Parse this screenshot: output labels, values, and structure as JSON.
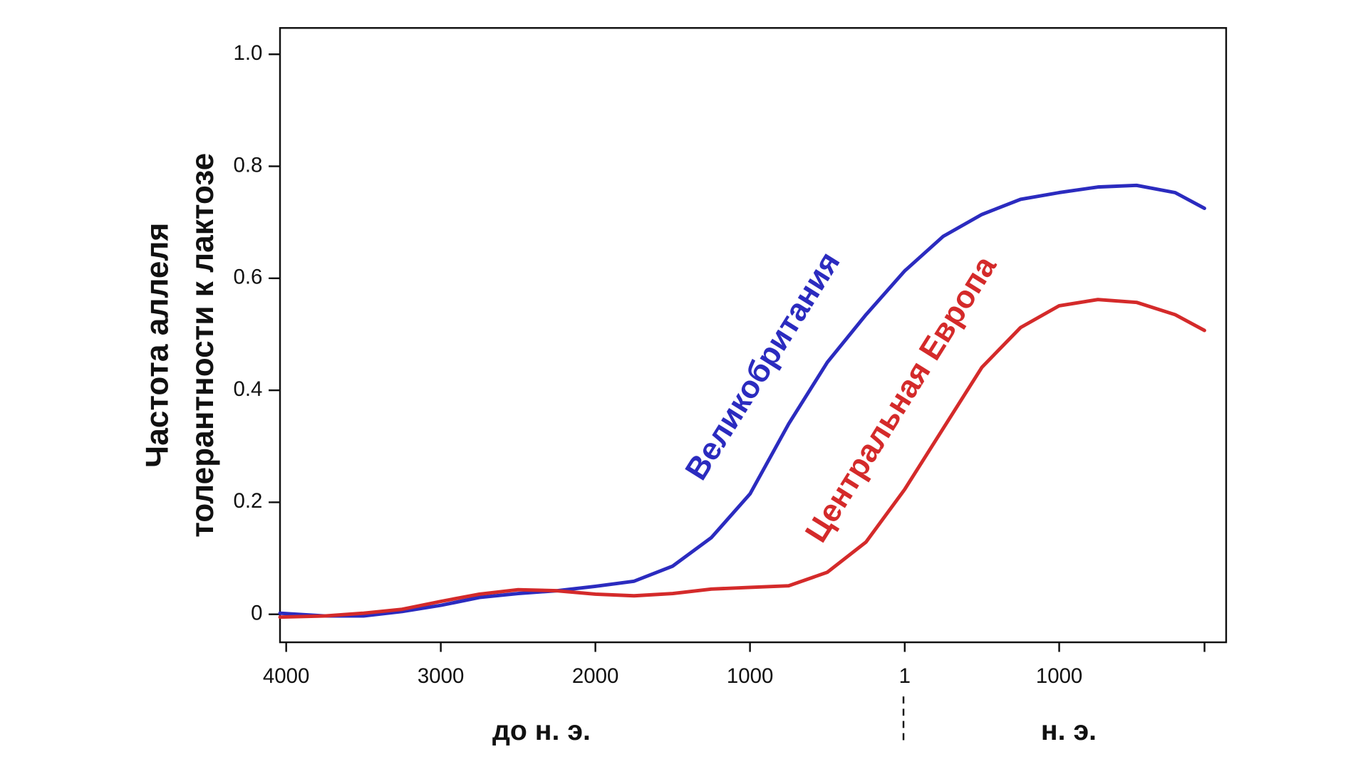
{
  "chart_data": {
    "type": "line",
    "ylabel": [
      "Частота аллеля",
      "толерантности к лактозе"
    ],
    "x": [
      -4040,
      -3750,
      -3500,
      -3250,
      -3000,
      -2750,
      -2500,
      -2250,
      -2000,
      -1750,
      -1500,
      -1250,
      -1000,
      -750,
      -500,
      -250,
      0,
      250,
      500,
      750,
      1000,
      1250,
      1500,
      1750,
      1940
    ],
    "series": [
      {
        "name": "Великобритания",
        "color": "#2b2bbf",
        "values": [
          0.002,
          -0.003,
          -0.003,
          0.005,
          0.016,
          0.03,
          0.037,
          0.042,
          0.05,
          0.059,
          0.086,
          0.137,
          0.215,
          0.34,
          0.45,
          0.535,
          0.613,
          0.675,
          0.714,
          0.741,
          0.753,
          0.763,
          0.766,
          0.753,
          0.725
        ]
      },
      {
        "name": "Центральная Европа",
        "color": "#d42a2a",
        "values": [
          -0.005,
          -0.003,
          0.002,
          0.009,
          0.023,
          0.036,
          0.044,
          0.042,
          0.036,
          0.033,
          0.037,
          0.045,
          0.048,
          0.051,
          0.075,
          0.129,
          0.223,
          0.332,
          0.441,
          0.512,
          0.551,
          0.562,
          0.557,
          0.535,
          0.507
        ]
      }
    ],
    "xlim": [
      -4040,
      2080
    ],
    "xticks": [
      {
        "value": -4000,
        "label": "4000"
      },
      {
        "value": -3000,
        "label": "3000"
      },
      {
        "value": -2000,
        "label": "2000"
      },
      {
        "value": -1000,
        "label": "1000"
      },
      1,
      1000,
      {
        "value": 1940,
        "label": null
      }
    ],
    "ylim": [
      -0.05,
      1.047
    ],
    "yticks": [
      0,
      0.2,
      0.4,
      0.6,
      0.8,
      {
        "value": 1,
        "label": "1.0"
      }
    ],
    "era_labels": [
      "до н. э.",
      "н. э."
    ]
  }
}
